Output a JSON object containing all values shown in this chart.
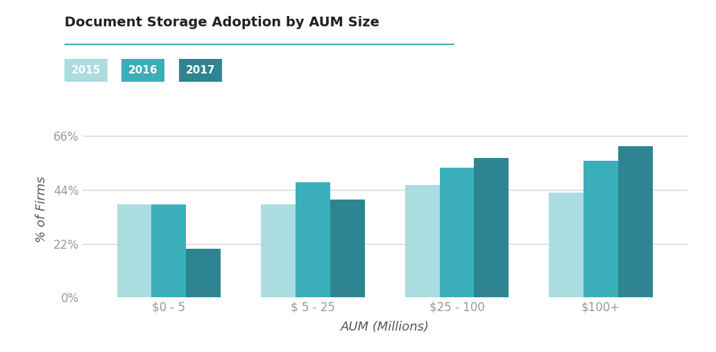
{
  "title": "Document Storage Adoption by AUM Size",
  "categories": [
    "$0 - 5",
    "$ 5 - 25",
    "$25 - 100",
    "$100+"
  ],
  "series": {
    "2015": [
      0.38,
      0.38,
      0.46,
      0.43
    ],
    "2016": [
      0.38,
      0.47,
      0.53,
      0.56
    ],
    "2017": [
      0.2,
      0.4,
      0.57,
      0.62
    ]
  },
  "colors": {
    "2015": "#aadce0",
    "2016": "#3aafb9",
    "2017": "#2e8591"
  },
  "ylabel": "% of Firms",
  "xlabel": "AUM (Millions)",
  "yticks": [
    0,
    0.22,
    0.44,
    0.66
  ],
  "ytick_labels": [
    "0%",
    "22%",
    "44%",
    "66%"
  ],
  "ylim": [
    0,
    0.72
  ],
  "title_color": "#222222",
  "axis_label_color": "#555555",
  "tick_color": "#999999",
  "background_color": "#ffffff",
  "grid_color": "#cccccc",
  "title_line_color": "#3aafb9",
  "legend_years": [
    "2015",
    "2016",
    "2017"
  ]
}
